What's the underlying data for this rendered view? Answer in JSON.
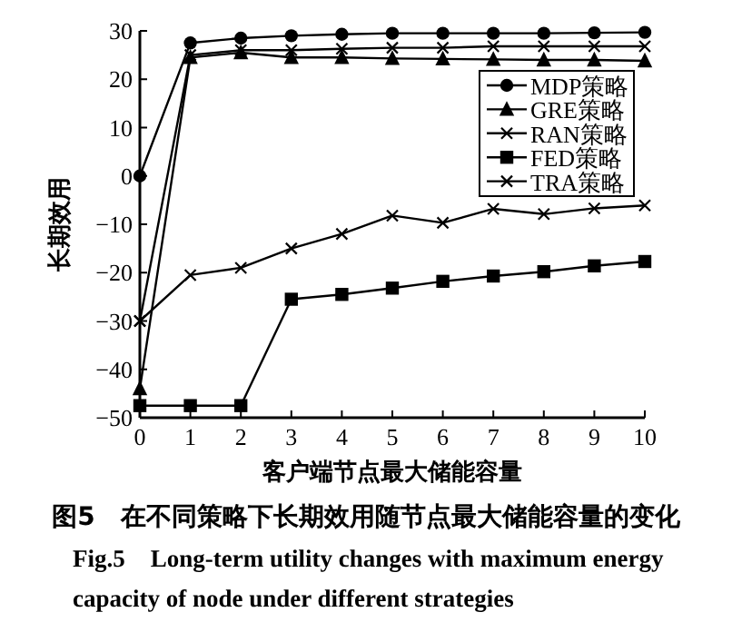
{
  "chart_data": {
    "type": "line",
    "xlabel": "客户端节点最大储能容量",
    "ylabel": "长期效用",
    "x": [
      0,
      1,
      2,
      3,
      4,
      5,
      6,
      7,
      8,
      9,
      10
    ],
    "series": [
      {
        "name": "MDP策略",
        "color": "#000000",
        "marker": "circle",
        "values": [
          0,
          27.5,
          28.5,
          29,
          29.3,
          29.5,
          29.5,
          29.5,
          29.5,
          29.6,
          29.7
        ]
      },
      {
        "name": "GRE策略",
        "color": "#000000",
        "marker": "triangle",
        "values": [
          -44,
          24.5,
          25.5,
          24.5,
          24.5,
          24.3,
          24.2,
          24.1,
          24,
          24,
          23.8
        ]
      },
      {
        "name": "RAN策略",
        "color": "#000000",
        "marker": "cross",
        "values": [
          -30,
          -20.5,
          -19,
          -15,
          -12,
          -8.2,
          -9.7,
          -6.8,
          -7.9,
          -6.7,
          -6.1
        ]
      },
      {
        "name": "FED策略",
        "color": "#000000",
        "marker": "square",
        "values": [
          -47.5,
          -47.5,
          -47.5,
          -25.5,
          -24.5,
          -23.2,
          -21.8,
          -20.7,
          -19.8,
          -18.6,
          -17.7
        ]
      },
      {
        "name": "TRA策略",
        "color": "#000000",
        "marker": "cross",
        "values": [
          -30,
          25,
          26,
          26,
          26.3,
          26.5,
          26.5,
          26.8,
          26.8,
          26.8,
          26.8
        ]
      }
    ],
    "xlim": [
      0,
      10
    ],
    "xticks": [
      0,
      1,
      2,
      3,
      4,
      5,
      6,
      7,
      8,
      9,
      10
    ],
    "ylim": [
      -50,
      30
    ],
    "yticks": [
      -50,
      -40,
      -30,
      -20,
      -10,
      0,
      10,
      20,
      30
    ],
    "grid": false,
    "legend": "top right",
    "line_style": "solid",
    "annotations": [
      "图5　在不同策略下长期效用随节点最大储能容量的变化",
      "Fig.5　Long-term utility changes with maximum energy capacity of node under different strategies"
    ]
  }
}
